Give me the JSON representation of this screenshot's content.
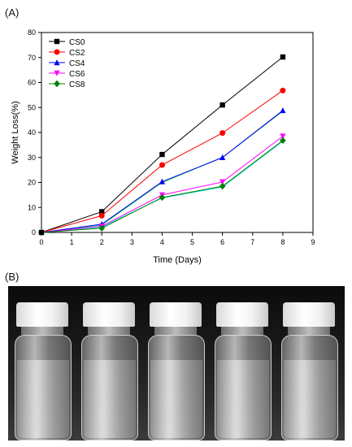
{
  "panel_a_label": "(A)",
  "panel_b_label": "(B)",
  "chart_data": {
    "type": "line",
    "title": "",
    "xlabel": "Time (Days)",
    "ylabel": "Weight Loss(%)",
    "xlim": [
      0,
      9
    ],
    "ylim": [
      0,
      80
    ],
    "xticks": [
      0,
      1,
      2,
      3,
      4,
      5,
      6,
      7,
      8,
      9
    ],
    "yticks": [
      0,
      10,
      20,
      30,
      40,
      50,
      60,
      70,
      80
    ],
    "grid": false,
    "legend_position": "top-left",
    "x": [
      0,
      2,
      4,
      6,
      8
    ],
    "series": [
      {
        "name": "CS0",
        "color": "#000000",
        "marker": "square",
        "values": [
          0,
          8.3,
          31.2,
          51,
          70.2
        ]
      },
      {
        "name": "CS2",
        "color": "#ff0000",
        "marker": "circle",
        "values": [
          0,
          6.7,
          27,
          39.8,
          56.8
        ]
      },
      {
        "name": "CS4",
        "color": "#0000ff",
        "marker": "triangle-up",
        "values": [
          0,
          3.3,
          20.3,
          30,
          48.8
        ]
      },
      {
        "name": "CS6",
        "color": "#ff00ff",
        "marker": "triangle-down",
        "values": [
          0,
          2.5,
          15,
          20.2,
          38.5
        ]
      },
      {
        "name": "CS8",
        "color": "#008000",
        "marker": "diamond",
        "values": [
          0,
          1.7,
          14,
          18.5,
          36.8
        ]
      }
    ],
    "extra_lines": [
      {
        "color": "#00e0e0",
        "values": [
          0,
          2.2,
          13.8,
          18.2,
          36.5
        ]
      },
      {
        "color": "#22cc44",
        "values": [
          0,
          3.0,
          20,
          30,
          48.5
        ]
      }
    ]
  },
  "photo": {
    "bottle_count": 5
  }
}
